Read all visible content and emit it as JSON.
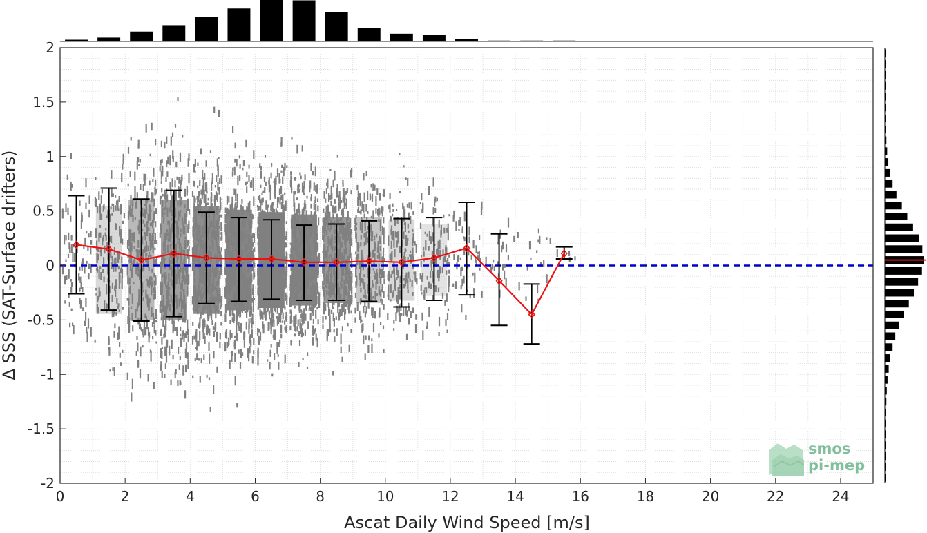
{
  "chart_data": {
    "type": "scatter",
    "xlabel": "Ascat Daily Wind Speed [m/s]",
    "ylabel": "Δ SSS (SAT-Surface drifters)",
    "xlim": [
      0,
      25
    ],
    "ylim": [
      -2,
      2
    ],
    "xticks": [
      "0",
      "2",
      "4",
      "6",
      "8",
      "10",
      "12",
      "14",
      "16",
      "18",
      "20",
      "22",
      "24"
    ],
    "yticks": [
      "-2",
      "-1.5",
      "-1",
      "-0.5",
      "0",
      "0.5",
      "1",
      "1.5",
      "2"
    ],
    "grid": true,
    "reference_line": {
      "y": 0,
      "color": "#0000cc",
      "style": "dashed"
    },
    "binned_stats": {
      "color": "#ee1111",
      "x": [
        0.5,
        1.5,
        2.5,
        3.5,
        4.5,
        5.5,
        6.5,
        7.5,
        8.5,
        9.5,
        10.5,
        11.5,
        12.5,
        13.5,
        14.5,
        15.5
      ],
      "mean": [
        0.19,
        0.15,
        0.05,
        0.11,
        0.07,
        0.06,
        0.06,
        0.03,
        0.03,
        0.04,
        0.03,
        0.07,
        0.16,
        -0.14,
        -0.45,
        0.11
      ],
      "lower": [
        -0.26,
        -0.41,
        -0.51,
        -0.47,
        -0.35,
        -0.33,
        -0.31,
        -0.32,
        -0.32,
        -0.33,
        -0.38,
        -0.32,
        -0.27,
        -0.55,
        -0.72,
        0.06
      ],
      "upper": [
        0.64,
        0.71,
        0.61,
        0.69,
        0.49,
        0.44,
        0.42,
        0.37,
        0.38,
        0.41,
        0.43,
        0.44,
        0.58,
        0.29,
        -0.17,
        0.17
      ]
    },
    "x_histogram": {
      "bin_centers": [
        0.5,
        1.5,
        2.5,
        3.5,
        4.5,
        5.5,
        6.5,
        7.5,
        8.5,
        9.5,
        10.5,
        11.5,
        12.5,
        13.5,
        14.5,
        15.5
      ],
      "relative_counts": [
        0.04,
        0.09,
        0.23,
        0.38,
        0.58,
        0.77,
        1.0,
        0.96,
        0.69,
        0.32,
        0.18,
        0.15,
        0.05,
        0.02,
        0.02,
        0.02
      ]
    },
    "y_histogram": {
      "bin_centers": [
        -1.95,
        -1.85,
        -1.75,
        -1.65,
        -1.55,
        -1.45,
        -1.35,
        -1.25,
        -1.15,
        -1.05,
        -0.95,
        -0.85,
        -0.75,
        -0.65,
        -0.55,
        -0.45,
        -0.35,
        -0.25,
        -0.15,
        -0.05,
        0.05,
        0.15,
        0.25,
        0.35,
        0.45,
        0.55,
        0.65,
        0.75,
        0.85,
        0.95,
        1.05,
        1.15,
        1.25,
        1.35,
        1.45,
        1.55,
        1.65,
        1.75,
        1.85,
        1.95
      ],
      "relative_counts": [
        0.02,
        0.02,
        0.02,
        0.02,
        0.03,
        0.03,
        0.03,
        0.04,
        0.05,
        0.07,
        0.1,
        0.14,
        0.2,
        0.27,
        0.36,
        0.49,
        0.62,
        0.75,
        0.86,
        0.96,
        1.0,
        0.97,
        0.88,
        0.73,
        0.58,
        0.44,
        0.3,
        0.2,
        0.13,
        0.09,
        0.06,
        0.04,
        0.03,
        0.03,
        0.02,
        0.02,
        0.02,
        0.02,
        0.02,
        0.02
      ],
      "mean_line": {
        "y": 0.05,
        "color": "#ee1111"
      }
    },
    "scatter_cloud": {
      "color": "#808080",
      "center_y": 0.05,
      "spread_by_bin": [
        0.38,
        0.45,
        0.5,
        0.5,
        0.45,
        0.42,
        0.4,
        0.38,
        0.36,
        0.36,
        0.34,
        0.3,
        0.25,
        0.22,
        0.18,
        0.1
      ],
      "density_by_bin": [
        0.15,
        0.3,
        0.55,
        0.75,
        0.9,
        0.95,
        1.0,
        0.95,
        0.8,
        0.45,
        0.3,
        0.22,
        0.1,
        0.04,
        0.03,
        0.01
      ]
    }
  },
  "watermark": {
    "line1": "smos",
    "line2": "pi-mep"
  },
  "colors": {
    "scatter": "#808080",
    "stats": "#ee1111",
    "reference": "#0000cc",
    "errorbar": "#000000"
  }
}
